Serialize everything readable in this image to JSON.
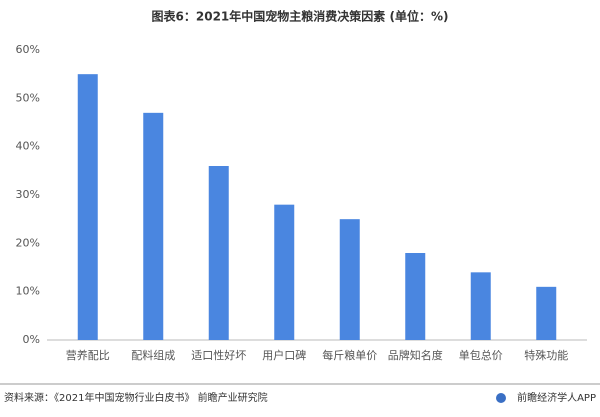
{
  "chart_data": {
    "type": "bar",
    "title": "图表6：2021年中国宠物主粮消费决策因素 (单位：%)",
    "categories": [
      "营养配比",
      "配料组成",
      "适口性好坏",
      "用户口碑",
      "每斤粮单价",
      "品牌知名度",
      "单包总价",
      "特殊功能"
    ],
    "values": [
      55,
      47,
      36,
      28,
      25,
      18,
      14,
      11
    ],
    "color": "#4a86e0",
    "ylim": [
      0,
      60
    ],
    "yticks": [
      {
        "value": 0,
        "label": "0%"
      },
      {
        "value": 10,
        "label": "10%"
      },
      {
        "value": 20,
        "label": "20%"
      },
      {
        "value": 30,
        "label": "30%"
      },
      {
        "value": 40,
        "label": "40%"
      },
      {
        "value": 50,
        "label": "50%"
      },
      {
        "value": 60,
        "label": "60%"
      }
    ],
    "grid": false
  },
  "source": "资料来源：《2021年中国宠物行业白皮书》 前瞻产业研究院",
  "brand": "前瞻经济学人APP"
}
